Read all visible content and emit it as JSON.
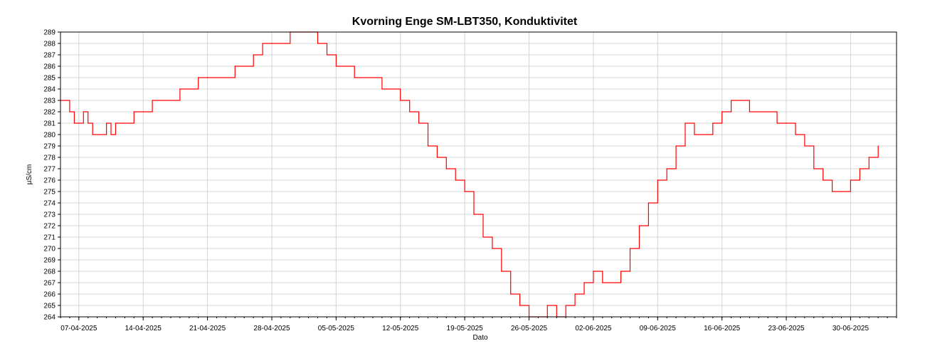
{
  "chart_data": {
    "type": "line",
    "title": "Kvorning Enge SM-LBT350, Konduktivitet",
    "xlabel": "Dato",
    "ylabel": "µS/cm",
    "xlim": [
      "2025-04-05",
      "2025-07-05"
    ],
    "ylim": [
      264,
      289
    ],
    "grid": true,
    "x_tick_labels": [
      "07-04-2025",
      "14-04-2025",
      "21-04-2025",
      "28-04-2025",
      "05-05-2025",
      "12-05-2025",
      "19-05-2025",
      "26-05-2025",
      "02-06-2025",
      "09-06-2025",
      "16-06-2025",
      "23-06-2025",
      "30-06-2025"
    ],
    "y_tick_labels": [
      "264",
      "265",
      "266",
      "267",
      "268",
      "269",
      "270",
      "271",
      "272",
      "273",
      "274",
      "275",
      "276",
      "277",
      "278",
      "279",
      "280",
      "281",
      "282",
      "283",
      "284",
      "285",
      "286",
      "287",
      "288",
      "289"
    ],
    "series": [
      {
        "color": "#ff0000",
        "x": [
          "2025-04-05",
          "2025-04-06",
          "2025-04-06.5",
          "2025-04-07",
          "2025-04-07.5",
          "2025-04-08",
          "2025-04-08.5",
          "2025-04-09",
          "2025-04-10",
          "2025-04-10.5",
          "2025-04-11",
          "2025-04-12",
          "2025-04-13",
          "2025-04-14",
          "2025-04-15",
          "2025-04-16",
          "2025-04-17",
          "2025-04-18",
          "2025-04-19",
          "2025-04-20",
          "2025-04-21",
          "2025-04-22",
          "2025-04-23",
          "2025-04-24",
          "2025-04-25",
          "2025-04-26",
          "2025-04-27",
          "2025-04-28",
          "2025-04-29",
          "2025-04-30",
          "2025-05-01",
          "2025-05-02",
          "2025-05-03",
          "2025-05-04",
          "2025-05-05",
          "2025-05-06",
          "2025-05-07",
          "2025-05-08",
          "2025-05-09",
          "2025-05-10",
          "2025-05-11",
          "2025-05-12",
          "2025-05-13",
          "2025-05-14",
          "2025-05-15",
          "2025-05-16",
          "2025-05-17",
          "2025-05-18",
          "2025-05-19",
          "2025-05-20",
          "2025-05-21",
          "2025-05-22",
          "2025-05-23",
          "2025-05-24",
          "2025-05-25",
          "2025-05-26",
          "2025-05-27",
          "2025-05-28",
          "2025-05-29",
          "2025-05-30",
          "2025-05-31",
          "2025-06-01",
          "2025-06-02",
          "2025-06-03",
          "2025-06-04",
          "2025-06-05",
          "2025-06-06",
          "2025-06-07",
          "2025-06-08",
          "2025-06-09",
          "2025-06-10",
          "2025-06-11",
          "2025-06-12",
          "2025-06-13",
          "2025-06-14",
          "2025-06-15",
          "2025-06-16",
          "2025-06-17",
          "2025-06-18",
          "2025-06-19",
          "2025-06-20",
          "2025-06-21",
          "2025-06-22",
          "2025-06-23",
          "2025-06-24",
          "2025-06-25",
          "2025-06-26",
          "2025-06-27",
          "2025-06-28",
          "2025-06-29",
          "2025-06-30",
          "2025-07-01",
          "2025-07-02",
          "2025-07-03"
        ],
        "y": [
          283,
          282,
          281,
          281,
          282,
          281,
          280,
          280,
          281,
          280,
          281,
          281,
          282,
          282,
          283,
          283,
          283,
          284,
          284,
          285,
          285,
          285,
          285,
          286,
          286,
          287,
          288,
          288,
          288,
          289,
          289,
          289,
          288,
          287,
          286,
          286,
          285,
          285,
          285,
          284,
          284,
          283,
          282,
          281,
          279,
          278,
          277,
          276,
          275,
          273,
          271,
          270,
          268,
          266,
          265,
          264,
          264,
          265,
          264,
          265,
          266,
          267,
          268,
          267,
          267,
          268,
          270,
          272,
          274,
          276,
          277,
          279,
          281,
          280,
          280,
          281,
          282,
          283,
          283,
          282,
          282,
          282,
          281,
          281,
          280,
          279,
          277,
          276,
          275,
          275,
          276,
          277,
          278,
          279
        ]
      }
    ]
  }
}
